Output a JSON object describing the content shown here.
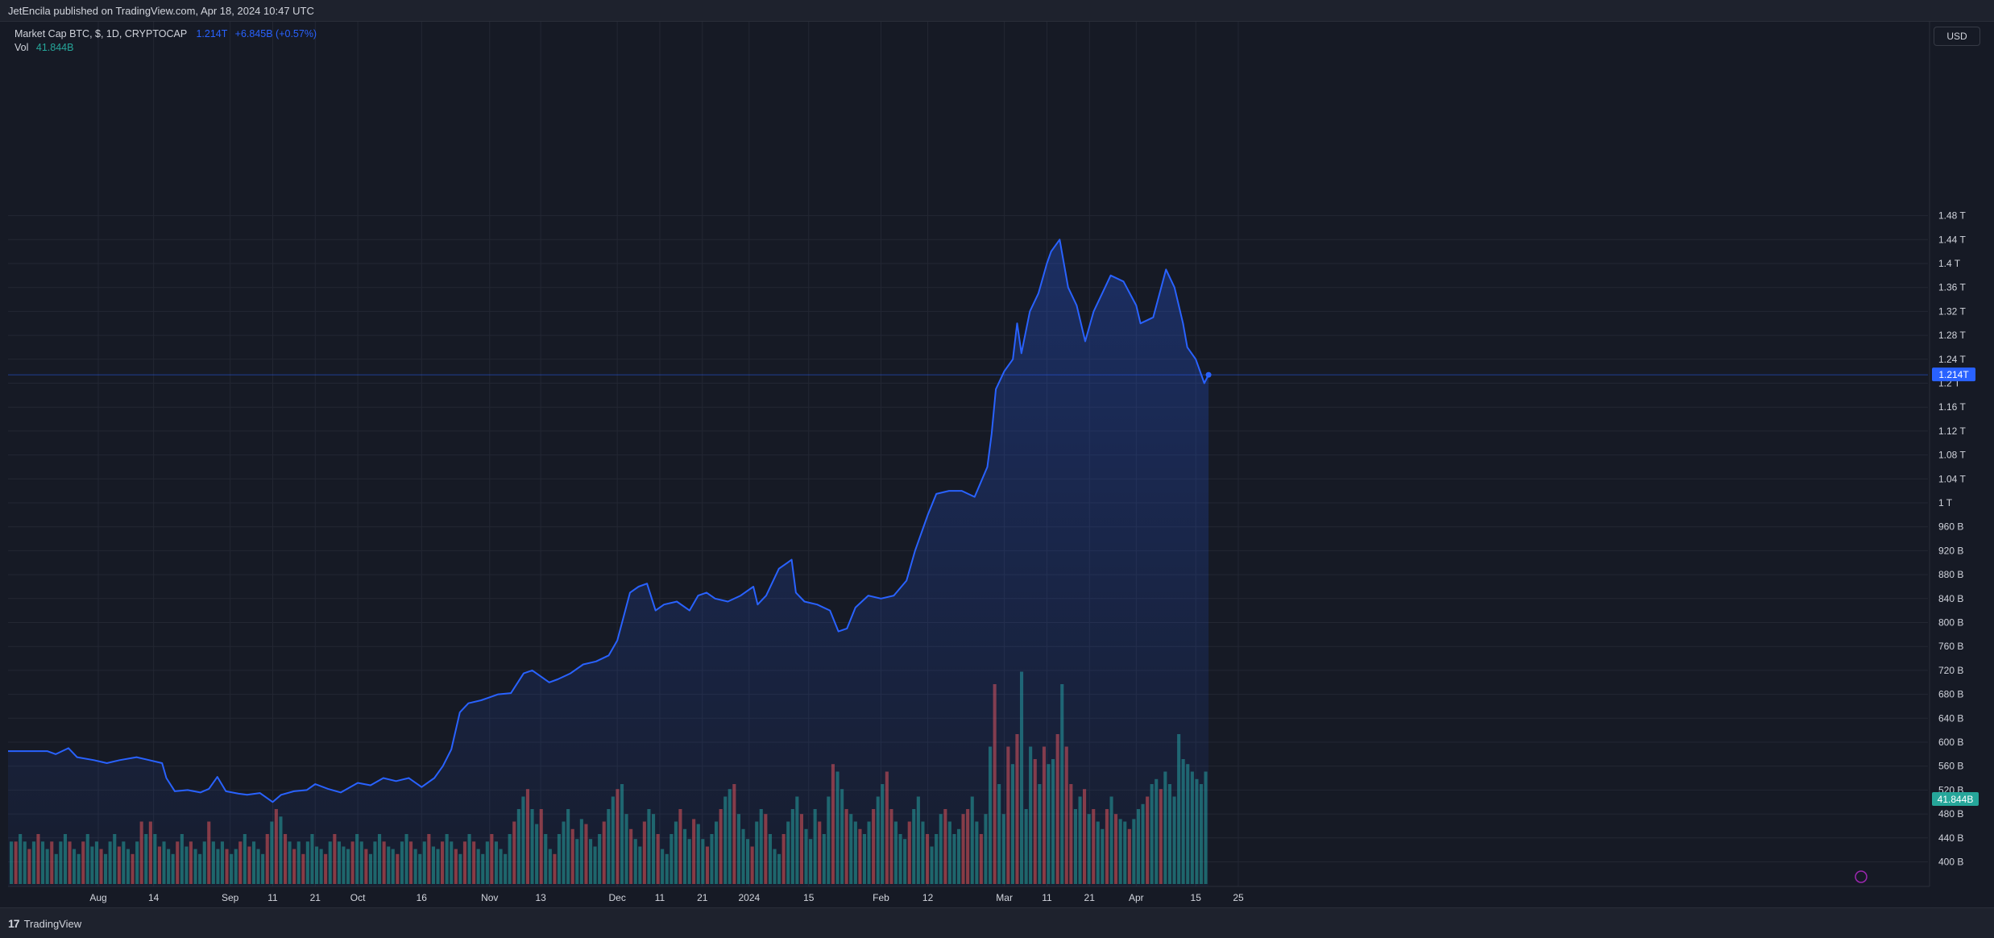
{
  "header": {
    "published": "JetEncila published on TradingView.com, Apr 18, 2024 10:47 UTC"
  },
  "legend": {
    "symbol": "Market Cap BTC, $, 1D, CRYPTOCAP",
    "last": "1.214T",
    "change": "+6.845B (+0.57%)",
    "vol_label": "Vol",
    "vol_value": "41.844B"
  },
  "currency_button": "USD",
  "footer": {
    "logo_mark": "17",
    "brand": "TradingView"
  },
  "colors": {
    "line": "#2962ff",
    "volume_up": "#26a69a",
    "volume_down": "#ef5350",
    "background": "#161a25",
    "grid": "#232733"
  },
  "chart_data": {
    "type": "area",
    "grid": true,
    "price_axis_position": "right",
    "y_unit": "USD",
    "ylim_billions": [
      395,
      1530
    ],
    "y_tick_labels": [
      "400 B",
      "440 B",
      "480 B",
      "520 B",
      "560 B",
      "600 B",
      "640 B",
      "680 B",
      "720 B",
      "760 B",
      "800 B",
      "840 B",
      "880 B",
      "920 B",
      "960 B",
      "1 T",
      "1.04 T",
      "1.08 T",
      "1.12 T",
      "1.16 T",
      "1.2 T",
      "1.24 T",
      "1.28 T",
      "1.32 T",
      "1.36 T",
      "1.4 T",
      "1.44 T",
      "1.48 T"
    ],
    "y_tick_values_billions": [
      400,
      440,
      480,
      520,
      560,
      600,
      640,
      680,
      720,
      760,
      800,
      840,
      880,
      920,
      960,
      1000,
      1040,
      1080,
      1120,
      1160,
      1200,
      1240,
      1280,
      1320,
      1360,
      1400,
      1440,
      1480
    ],
    "x_tick_labels": [
      "Aug",
      "14",
      "Sep",
      "11",
      "21",
      "Oct",
      "16",
      "Nov",
      "13",
      "Dec",
      "11",
      "21",
      "2024",
      "15",
      "Feb",
      "12",
      "Mar",
      "11",
      "21",
      "Apr",
      "15",
      "25"
    ],
    "x_tick_dates": [
      "2023-08-01",
      "2023-08-14",
      "2023-09-01",
      "2023-09-11",
      "2023-09-21",
      "2023-10-01",
      "2023-10-16",
      "2023-11-01",
      "2023-11-13",
      "2023-12-01",
      "2023-12-11",
      "2023-12-21",
      "2024-01-01",
      "2024-01-15",
      "2024-02-01",
      "2024-02-12",
      "2024-03-01",
      "2024-03-11",
      "2024-03-21",
      "2024-04-01",
      "2024-04-15",
      "2024-04-25"
    ],
    "current_price_label": "1.214T",
    "current_price": 1214,
    "current_volume_label": "41.844B",
    "series": [
      {
        "name": "Market Cap BTC",
        "points": [
          [
            "2023-07-17",
            585
          ],
          [
            "2023-07-20",
            585
          ],
          [
            "2023-07-22",
            580
          ],
          [
            "2023-07-25",
            590
          ],
          [
            "2023-07-27",
            575
          ],
          [
            "2023-07-31",
            570
          ],
          [
            "2023-08-03",
            565
          ],
          [
            "2023-08-06",
            570
          ],
          [
            "2023-08-10",
            575
          ],
          [
            "2023-08-13",
            570
          ],
          [
            "2023-08-16",
            565
          ],
          [
            "2023-08-17",
            540
          ],
          [
            "2023-08-19",
            518
          ],
          [
            "2023-08-22",
            520
          ],
          [
            "2023-08-25",
            516
          ],
          [
            "2023-08-27",
            522
          ],
          [
            "2023-08-29",
            542
          ],
          [
            "2023-08-31",
            518
          ],
          [
            "2023-09-03",
            514
          ],
          [
            "2023-09-05",
            512
          ],
          [
            "2023-09-08",
            515
          ],
          [
            "2023-09-11",
            500
          ],
          [
            "2023-09-13",
            512
          ],
          [
            "2023-09-16",
            518
          ],
          [
            "2023-09-19",
            520
          ],
          [
            "2023-09-21",
            530
          ],
          [
            "2023-09-24",
            522
          ],
          [
            "2023-09-27",
            516
          ],
          [
            "2023-10-01",
            532
          ],
          [
            "2023-10-04",
            528
          ],
          [
            "2023-10-07",
            540
          ],
          [
            "2023-10-10",
            535
          ],
          [
            "2023-10-13",
            540
          ],
          [
            "2023-10-16",
            525
          ],
          [
            "2023-10-19",
            540
          ],
          [
            "2023-10-21",
            560
          ],
          [
            "2023-10-23",
            588
          ],
          [
            "2023-10-25",
            650
          ],
          [
            "2023-10-27",
            665
          ],
          [
            "2023-10-30",
            670
          ],
          [
            "2023-11-01",
            675
          ],
          [
            "2023-11-03",
            680
          ],
          [
            "2023-11-06",
            682
          ],
          [
            "2023-11-09",
            715
          ],
          [
            "2023-11-11",
            720
          ],
          [
            "2023-11-13",
            710
          ],
          [
            "2023-11-15",
            700
          ],
          [
            "2023-11-17",
            705
          ],
          [
            "2023-11-20",
            715
          ],
          [
            "2023-11-23",
            730
          ],
          [
            "2023-11-26",
            735
          ],
          [
            "2023-11-29",
            745
          ],
          [
            "2023-12-01",
            770
          ],
          [
            "2023-12-04",
            850
          ],
          [
            "2023-12-06",
            860
          ],
          [
            "2023-12-08",
            865
          ],
          [
            "2023-12-10",
            820
          ],
          [
            "2023-12-12",
            830
          ],
          [
            "2023-12-15",
            835
          ],
          [
            "2023-12-18",
            820
          ],
          [
            "2023-12-20",
            845
          ],
          [
            "2023-12-22",
            850
          ],
          [
            "2023-12-24",
            840
          ],
          [
            "2023-12-27",
            835
          ],
          [
            "2023-12-30",
            845
          ],
          [
            "2024-01-02",
            860
          ],
          [
            "2024-01-03",
            830
          ],
          [
            "2024-01-05",
            845
          ],
          [
            "2024-01-08",
            890
          ],
          [
            "2024-01-10",
            900
          ],
          [
            "2024-01-11",
            905
          ],
          [
            "2024-01-12",
            850
          ],
          [
            "2024-01-14",
            835
          ],
          [
            "2024-01-17",
            830
          ],
          [
            "2024-01-20",
            820
          ],
          [
            "2024-01-22",
            785
          ],
          [
            "2024-01-24",
            790
          ],
          [
            "2024-01-26",
            825
          ],
          [
            "2024-01-29",
            845
          ],
          [
            "2024-02-01",
            840
          ],
          [
            "2024-02-04",
            845
          ],
          [
            "2024-02-07",
            870
          ],
          [
            "2024-02-09",
            920
          ],
          [
            "2024-02-12",
            980
          ],
          [
            "2024-02-14",
            1015
          ],
          [
            "2024-02-17",
            1020
          ],
          [
            "2024-02-20",
            1020
          ],
          [
            "2024-02-23",
            1010
          ],
          [
            "2024-02-26",
            1060
          ],
          [
            "2024-02-27",
            1115
          ],
          [
            "2024-02-28",
            1190
          ],
          [
            "2024-03-01",
            1220
          ],
          [
            "2024-03-03",
            1240
          ],
          [
            "2024-03-04",
            1300
          ],
          [
            "2024-03-05",
            1250
          ],
          [
            "2024-03-07",
            1320
          ],
          [
            "2024-03-09",
            1350
          ],
          [
            "2024-03-11",
            1400
          ],
          [
            "2024-03-12",
            1420
          ],
          [
            "2024-03-14",
            1440
          ],
          [
            "2024-03-16",
            1360
          ],
          [
            "2024-03-18",
            1330
          ],
          [
            "2024-03-20",
            1270
          ],
          [
            "2024-03-22",
            1320
          ],
          [
            "2024-03-24",
            1350
          ],
          [
            "2024-03-26",
            1380
          ],
          [
            "2024-03-29",
            1370
          ],
          [
            "2024-04-01",
            1330
          ],
          [
            "2024-04-02",
            1300
          ],
          [
            "2024-04-05",
            1310
          ],
          [
            "2024-04-08",
            1390
          ],
          [
            "2024-04-10",
            1360
          ],
          [
            "2024-04-12",
            1300
          ],
          [
            "2024-04-13",
            1260
          ],
          [
            "2024-04-15",
            1240
          ],
          [
            "2024-04-17",
            1200
          ],
          [
            "2024-04-18",
            1214
          ]
        ]
      },
      {
        "name": "Vol",
        "values_billions": [
          17,
          17,
          20,
          17,
          14,
          17,
          20,
          17,
          14,
          17,
          12,
          17,
          20,
          17,
          14,
          12,
          17,
          20,
          15,
          17,
          14,
          12,
          17,
          20,
          15,
          17,
          14,
          12,
          17,
          25,
          20,
          25,
          20,
          15,
          17,
          14,
          12,
          17,
          20,
          15,
          17,
          14,
          12,
          17,
          25,
          17,
          14,
          17,
          14,
          12,
          14,
          17,
          20,
          15,
          17,
          14,
          12,
          20,
          25,
          30,
          27,
          20,
          17,
          14,
          17,
          12,
          17,
          20,
          15,
          14,
          12,
          17,
          20,
          17,
          15,
          14,
          17,
          20,
          17,
          14,
          12,
          17,
          20,
          17,
          15,
          14,
          12,
          17,
          20,
          17,
          14,
          12,
          17,
          20,
          15,
          14,
          17,
          20,
          17,
          14,
          12,
          17,
          20,
          17,
          14,
          12,
          17,
          20,
          17,
          14,
          12,
          20,
          25,
          30,
          35,
          38,
          30,
          24,
          30,
          20,
          14,
          12,
          20,
          25,
          30,
          22,
          18,
          26,
          24,
          18,
          15,
          20,
          25,
          30,
          35,
          38,
          40,
          28,
          22,
          18,
          15,
          25,
          30,
          28,
          20,
          14,
          12,
          20,
          25,
          30,
          22,
          18,
          26,
          24,
          18,
          15,
          20,
          25,
          30,
          35,
          38,
          40,
          28,
          22,
          18,
          15,
          25,
          30,
          28,
          20,
          14,
          12,
          20,
          25,
          30,
          35,
          28,
          22,
          18,
          30,
          25,
          20,
          35,
          48,
          45,
          38,
          30,
          28,
          25,
          22,
          20,
          25,
          30,
          35,
          40,
          45,
          30,
          25,
          20,
          18,
          25,
          30,
          35,
          25,
          20,
          15,
          20,
          28,
          30,
          25,
          20,
          22,
          28,
          30,
          35,
          25,
          20,
          28,
          55,
          80,
          40,
          28,
          55,
          48,
          60,
          85,
          30,
          55,
          50,
          40,
          55,
          48,
          50,
          60,
          80,
          55,
          40,
          30,
          35,
          38,
          28,
          30,
          25,
          22,
          30,
          35,
          28,
          26,
          25,
          22,
          26,
          30,
          32,
          35,
          40,
          42,
          38,
          45,
          40,
          35,
          60,
          50,
          48,
          45,
          42,
          40,
          45
        ]
      }
    ]
  }
}
